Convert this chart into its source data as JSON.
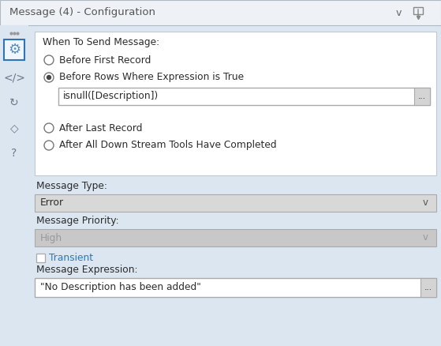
{
  "title": "Message (4) - Configuration",
  "bg_color": "#dce6f1",
  "header_bg": "#eef1f5",
  "header_text_color": "#555555",
  "when_to_send_label": "When To Send Message:",
  "radio_options": [
    "Before First Record",
    "Before Rows Where Expression is True",
    "After Last Record",
    "After All Down Stream Tools Have Completed"
  ],
  "selected_radio": 1,
  "expression_text": "isnull([Description])",
  "message_type_label": "Message Type:",
  "message_type_value": "Error",
  "message_priority_label": "Message Priority:",
  "message_priority_value": "High",
  "transient_label": "Transient",
  "message_expression_label": "Message Expression:",
  "message_expression_value": "\"No Description has been added\"",
  "white": "#ffffff",
  "light_gray": "#d4d4d4",
  "mid_gray": "#c8c8c8",
  "dark_text": "#2b2b2b",
  "blue_text": "#2e75b6",
  "border_color": "#b0b8c4",
  "section_border": "#c0c8d4",
  "dropdown_bg": "#d8d8d8",
  "disabled_text": "#999999",
  "sidebar_bg": "#dce6f1",
  "gear_border": "#2e75b6",
  "icon_color": "#6a7a8a"
}
